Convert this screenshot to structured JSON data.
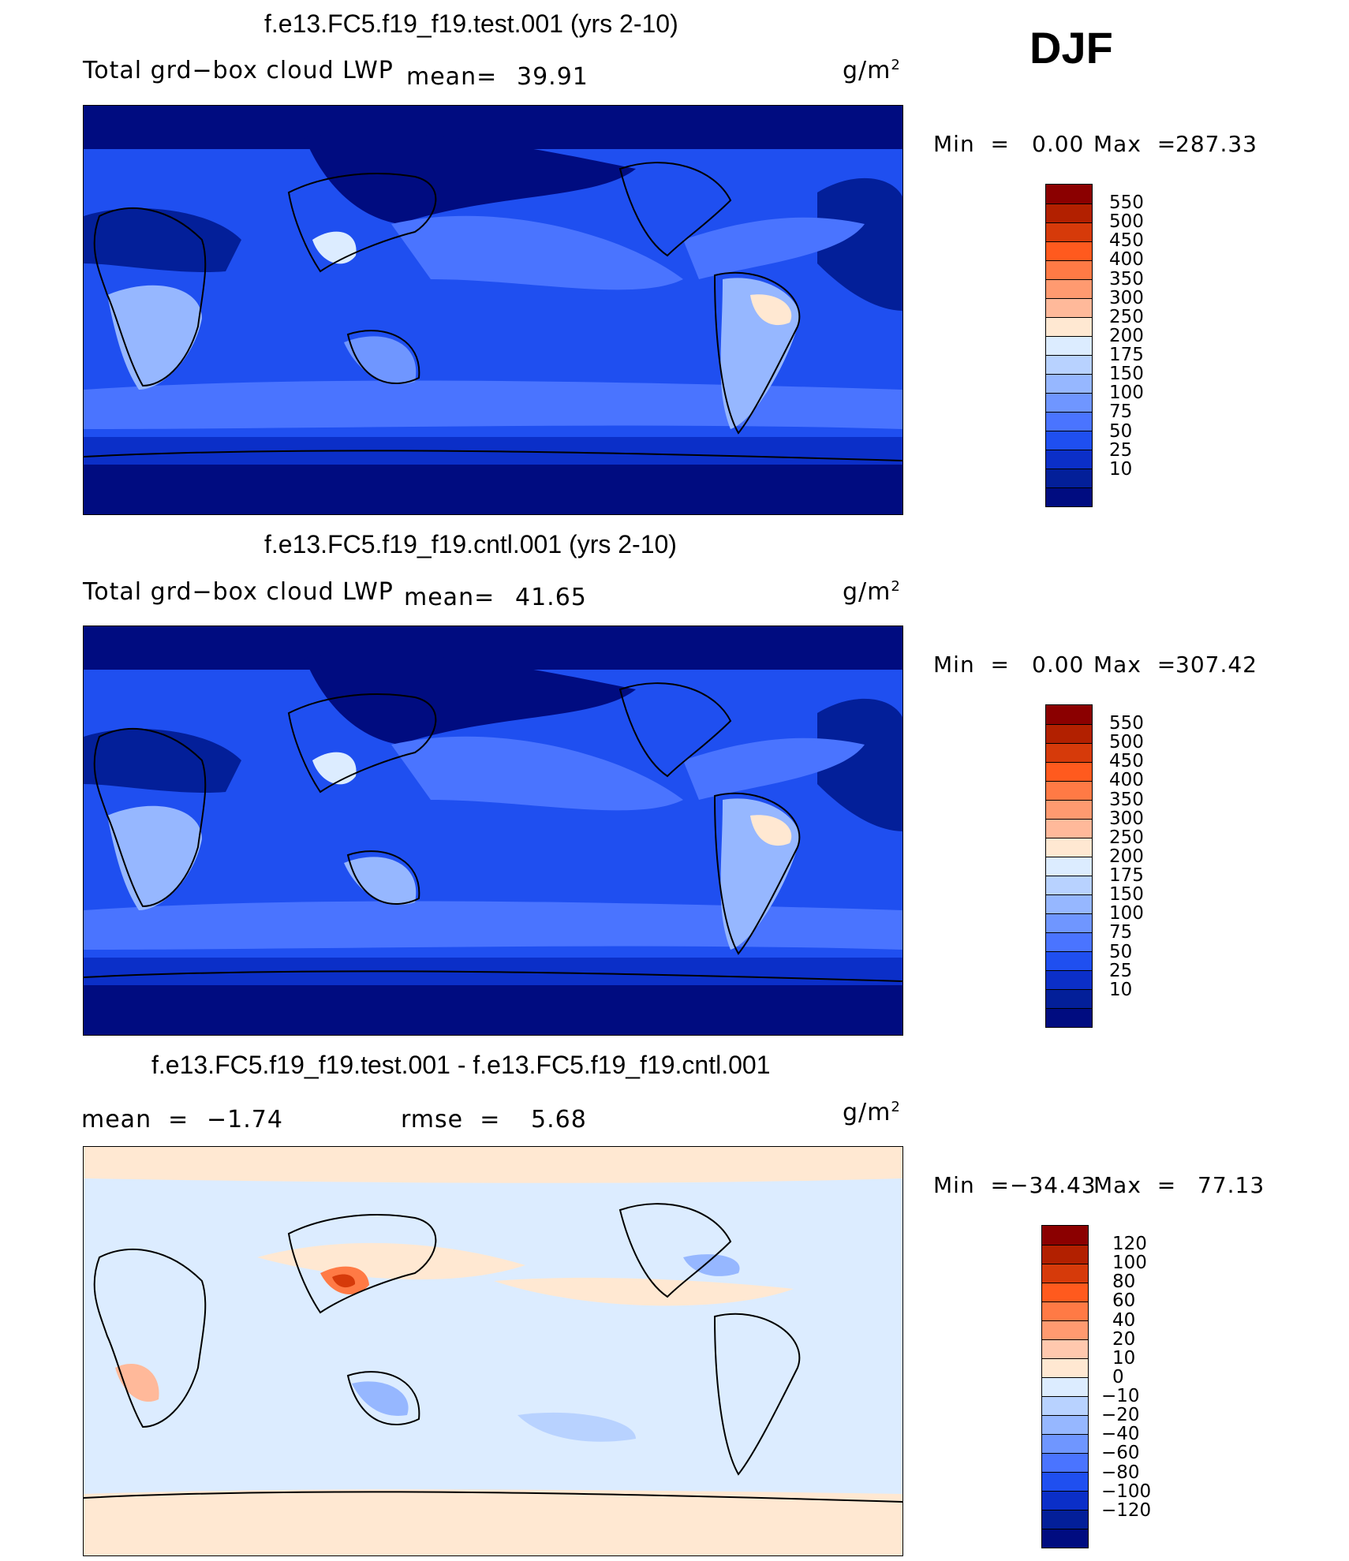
{
  "season": "DJF",
  "units_base": "g/m",
  "units_exp": "2",
  "panels": [
    {
      "title": "f.e13.FC5.f19_f19.test.001 (yrs 2-10)",
      "var_label": "Total grd−box cloud LWP",
      "mean_label": "mean=",
      "mean_value": "39.91",
      "min_label": "Min  =",
      "min_value": "0.00",
      "max_label": "Max  =",
      "max_value": "287.33"
    },
    {
      "title": "f.e13.FC5.f19_f19.cntl.001 (yrs 2-10)",
      "var_label": "Total grd−box cloud LWP",
      "mean_label": "mean=",
      "mean_value": "41.65",
      "min_label": "Min  =",
      "min_value": "0.00",
      "max_label": "Max  =",
      "max_value": "307.42"
    },
    {
      "title": "f.e13.FC5.f19_f19.test.001 - f.e13.FC5.f19_f19.cntl.001",
      "mean_label": "mean  =",
      "mean_value": "−1.74",
      "rmse_label": "rmse  =",
      "rmse_value": "5.68",
      "min_label": "Min  =",
      "min_value": "−34.43",
      "max_label": "Max  =",
      "max_value": "77.13"
    }
  ],
  "colorbars": {
    "lwp": {
      "levels": [
        "550",
        "500",
        "450",
        "400",
        "350",
        "300",
        "250",
        "200",
        "175",
        "150",
        "100",
        "75",
        "50",
        "25",
        "10"
      ],
      "colors": [
        "#8b0000",
        "#b22000",
        "#d63a0a",
        "#ff5a1e",
        "#ff7a45",
        "#ff9a70",
        "#ffb99a",
        "#ffe8d2",
        "#dcecff",
        "#b8d2ff",
        "#96b7ff",
        "#6f96ff",
        "#4a74ff",
        "#1f4ff0",
        "#0b2fc8",
        "#031f99",
        "#000c80"
      ]
    },
    "diff": {
      "levels": [
        "120",
        "100",
        "80",
        "60",
        "40",
        "20",
        "10",
        "0",
        "−10",
        "−20",
        "−40",
        "−60",
        "−80",
        "−100",
        "−120"
      ],
      "colors": [
        "#8b0000",
        "#b22000",
        "#d63a0a",
        "#ff5a1e",
        "#ff7a45",
        "#ff9a70",
        "#ffc8ae",
        "#ffe8d2",
        "#dcecff",
        "#b8d2ff",
        "#96b7ff",
        "#6f96ff",
        "#4a74ff",
        "#1f4ff0",
        "#0b2fc8",
        "#031f99",
        "#000c80"
      ]
    }
  },
  "chart_data": [
    {
      "type": "heatmap",
      "title": "f.e13.FC5.f19_f19.test.001 (yrs 2-10)",
      "subtitle": "Total grd−box cloud LWP",
      "units": "g/m2",
      "mean": 39.91,
      "min": 0.0,
      "max": 287.33,
      "contour_levels": [
        10,
        25,
        50,
        75,
        100,
        150,
        175,
        200,
        250,
        300,
        350,
        400,
        450,
        500,
        550
      ]
    },
    {
      "type": "heatmap",
      "title": "f.e13.FC5.f19_f19.cntl.001 (yrs 2-10)",
      "subtitle": "Total grd−box cloud LWP",
      "units": "g/m2",
      "mean": 41.65,
      "min": 0.0,
      "max": 307.42,
      "contour_levels": [
        10,
        25,
        50,
        75,
        100,
        150,
        175,
        200,
        250,
        300,
        350,
        400,
        450,
        500,
        550
      ]
    },
    {
      "type": "heatmap",
      "title": "f.e13.FC5.f19_f19.test.001 - f.e13.FC5.f19_f19.cntl.001",
      "units": "g/m2",
      "mean": -1.74,
      "rmse": 5.68,
      "min": -34.43,
      "max": 77.13,
      "contour_levels": [
        -120,
        -100,
        -80,
        -60,
        -40,
        -20,
        -10,
        0,
        10,
        20,
        40,
        60,
        80,
        100,
        120
      ]
    }
  ]
}
